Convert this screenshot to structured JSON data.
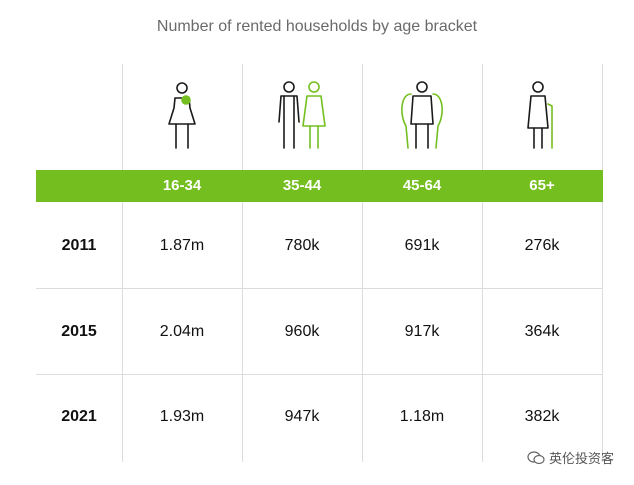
{
  "title": "Number of rented households by age bracket",
  "watermark": "英伦投资客",
  "colors": {
    "accent": "#74bf1f",
    "text": "#111111",
    "grid": "#dcdcdc"
  },
  "icons": [
    "mother-with-baby-icon",
    "couple-icon",
    "middle-aged-couple-icon",
    "elderly-woman-with-cane-icon"
  ],
  "chart_data": {
    "type": "table",
    "title": "Number of rented households by age bracket",
    "columns": [
      "16-34",
      "35-44",
      "45-64",
      "65+"
    ],
    "rows": [
      {
        "year": "2011",
        "values": [
          "1.87m",
          "780k",
          "691k",
          "276k"
        ]
      },
      {
        "year": "2015",
        "values": [
          "2.04m",
          "960k",
          "917k",
          "364k"
        ]
      },
      {
        "year": "2021",
        "values": [
          "1.93m",
          "947k",
          "1.18m",
          "382k"
        ]
      }
    ]
  }
}
